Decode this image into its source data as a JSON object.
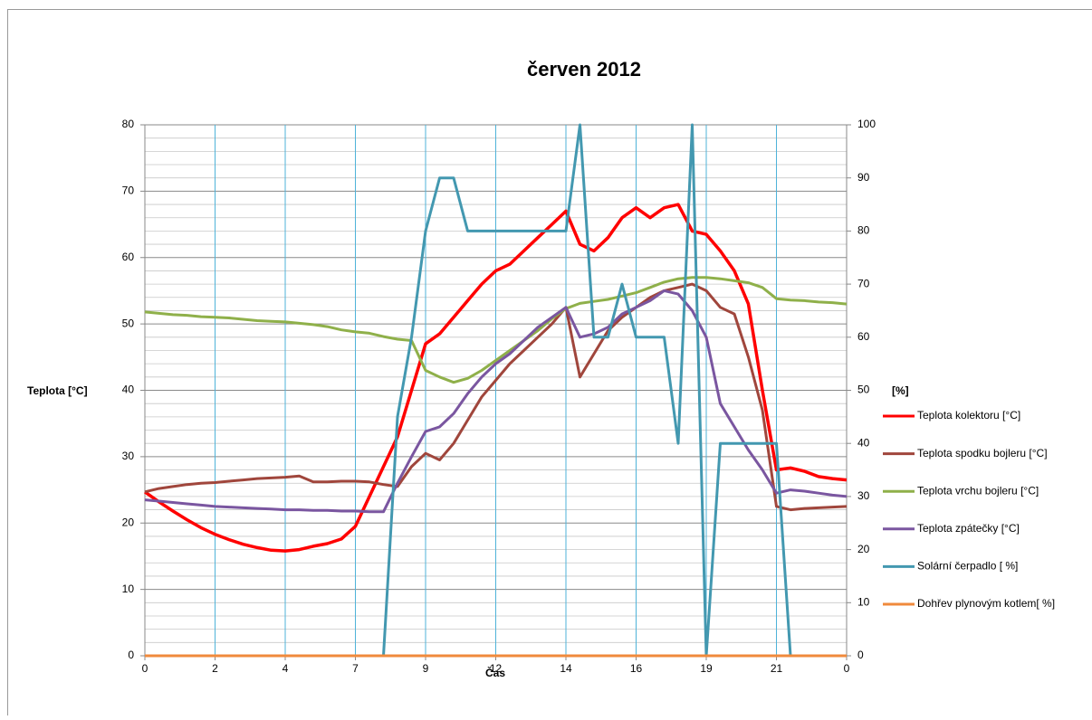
{
  "chart_data": {
    "type": "line",
    "title": "červen 2012",
    "x_label": "Čas",
    "y_label": "Teplota [°C]",
    "y2_label": "[%]",
    "legend": "right",
    "grid": true,
    "xlim": [
      0,
      10
    ],
    "xticks": [
      0,
      {
        "value": 1,
        "label": "2"
      },
      {
        "value": 2,
        "label": "4"
      },
      {
        "value": 3,
        "label": "7"
      },
      {
        "value": 4,
        "label": "9"
      },
      {
        "value": 5,
        "label": "12"
      },
      {
        "value": 6,
        "label": "14"
      },
      {
        "value": 7,
        "label": "16"
      },
      {
        "value": 8,
        "label": "19"
      },
      {
        "value": 9,
        "label": "21"
      },
      {
        "value": 10,
        "label": "0"
      }
    ],
    "ylim": [
      0,
      80
    ],
    "yticks": [
      0,
      10,
      20,
      30,
      40,
      50,
      60,
      70,
      80
    ],
    "y2lim": [
      0,
      100
    ],
    "y2ticks": [
      0,
      10,
      20,
      30,
      40,
      50,
      60,
      70,
      80,
      90,
      100
    ],
    "x": [
      0,
      0.2,
      0.4,
      0.6,
      0.8,
      1,
      1.2,
      1.4,
      1.6,
      1.8,
      2,
      2.2,
      2.4,
      2.6,
      2.8,
      3,
      3.2,
      3.4,
      3.6,
      3.8,
      4,
      4.2,
      4.4,
      4.6,
      4.8,
      5,
      5.2,
      5.4,
      5.6,
      5.8,
      6,
      6.2,
      6.4,
      6.6,
      6.8,
      7,
      7.2,
      7.4,
      7.6,
      7.8,
      8,
      8.2,
      8.4,
      8.6,
      8.8,
      9,
      9.2,
      9.4,
      9.6,
      9.8,
      10
    ],
    "series": [
      {
        "name": "Teplota kolektoru [°C]",
        "color": "#ff0000",
        "width": 3.5,
        "values": [
          24.7,
          23.2,
          21.8,
          20.5,
          19.3,
          18.3,
          17.5,
          16.8,
          16.3,
          15.9,
          15.8,
          16.0,
          16.5,
          16.9,
          17.6,
          19.5,
          24,
          28.5,
          33,
          40,
          47,
          48.5,
          51,
          53.5,
          56,
          58,
          59,
          61,
          63,
          65,
          67,
          62,
          61,
          63,
          66,
          67.5,
          66,
          67.5,
          68,
          64,
          63.5,
          61,
          58,
          53,
          40,
          28,
          28.3,
          27.8,
          27,
          26.7,
          26.5
        ]
      },
      {
        "name": "Teplota spodku bojleru [°C]",
        "color": "#a0463c",
        "width": 3,
        "values": [
          24.7,
          25.2,
          25.5,
          25.8,
          26,
          26.1,
          26.3,
          26.5,
          26.7,
          26.8,
          26.9,
          27.1,
          26.2,
          26.2,
          26.3,
          26.3,
          26.2,
          25.8,
          25.5,
          28.5,
          30.5,
          29.5,
          32,
          35.5,
          39,
          41.5,
          44,
          46,
          48,
          50,
          52.5,
          42,
          45.5,
          49,
          51,
          52.5,
          54,
          55,
          55.5,
          56,
          55,
          52.5,
          51.5,
          45,
          37,
          22.5,
          22,
          22.2,
          22.3,
          22.4,
          22.5
        ]
      },
      {
        "name": "Teplota vrchu bojleru [°C]",
        "color": "#8fb04a",
        "width": 3,
        "values": [
          51.8,
          51.6,
          51.4,
          51.3,
          51.1,
          51,
          50.9,
          50.7,
          50.5,
          50.4,
          50.3,
          50.1,
          49.9,
          49.6,
          49.1,
          48.8,
          48.6,
          48.1,
          47.7,
          47.5,
          43,
          42,
          41.2,
          41.8,
          43,
          44.5,
          46,
          47.5,
          49,
          50.8,
          52.3,
          53.1,
          53.4,
          53.7,
          54.2,
          54.7,
          55.5,
          56.3,
          56.8,
          57,
          57,
          56.8,
          56.5,
          56.2,
          55.5,
          53.8,
          53.6,
          53.5,
          53.3,
          53.2,
          53
        ]
      },
      {
        "name": "Teplota zpátečky [°C]",
        "color": "#7a56a0",
        "width": 3,
        "values": [
          23.5,
          23.3,
          23.1,
          22.9,
          22.7,
          22.5,
          22.4,
          22.3,
          22.2,
          22.1,
          22,
          22,
          21.9,
          21.9,
          21.8,
          21.8,
          21.7,
          21.7,
          26,
          30,
          33.8,
          34.5,
          36.5,
          39.5,
          42,
          44,
          45.5,
          47.5,
          49.5,
          51,
          52.5,
          48,
          48.5,
          49.5,
          51.5,
          52.5,
          53.5,
          55,
          54.5,
          52,
          48,
          38,
          34.5,
          31,
          28,
          24.5,
          25,
          24.8,
          24.5,
          24.2,
          24
        ]
      },
      {
        "name": "Solární čerpadlo [ %]",
        "color": "#4398b0",
        "width": 3,
        "axis": "y2",
        "values": [
          0,
          0,
          0,
          0,
          0,
          0,
          0,
          0,
          0,
          0,
          0,
          0,
          0,
          0,
          0,
          0,
          0,
          0,
          45,
          60,
          80,
          90,
          90,
          80,
          80,
          80,
          80,
          80,
          80,
          80,
          80,
          100,
          60,
          60,
          70,
          60,
          60,
          60,
          40,
          100,
          0,
          40,
          40,
          40,
          40,
          40,
          0,
          0,
          0,
          0,
          0
        ]
      },
      {
        "name": "Dohřev plynovým kotlem[ %]",
        "color": "#f08a3c",
        "width": 3,
        "axis": "y2",
        "values": [
          0,
          0,
          0,
          0,
          0,
          0,
          0,
          0,
          0,
          0,
          0,
          0,
          0,
          0,
          0,
          0,
          0,
          0,
          0,
          0,
          0,
          0,
          0,
          0,
          0,
          0,
          0,
          0,
          0,
          0,
          0,
          0,
          0,
          0,
          0,
          0,
          0,
          0,
          0,
          0,
          0,
          0,
          0,
          0,
          0,
          0,
          0,
          0,
          0,
          0,
          0
        ]
      }
    ]
  }
}
